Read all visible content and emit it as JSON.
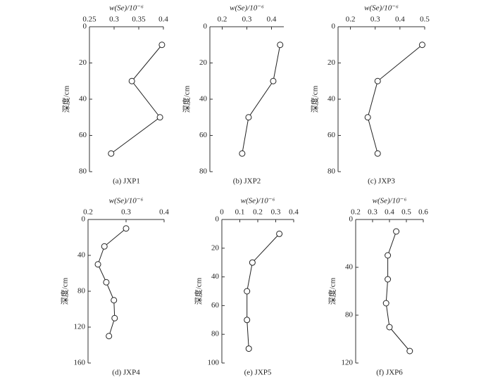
{
  "chart_data": [
    {
      "type": "line",
      "xlabel": "w(Se)/10⁻⁶",
      "ylabel": "深度/cm",
      "caption": "(a) JXP1",
      "color": "#222",
      "values": [
        0.397,
        0.336,
        0.393,
        0.294
      ],
      "y": [
        10,
        30,
        50,
        70
      ],
      "xlim": [
        0.25,
        0.4
      ],
      "xticks": [
        0.25,
        0.3,
        0.35,
        0.4
      ],
      "ylim": [
        0,
        80
      ],
      "yticks": [
        0,
        20,
        40,
        60,
        80
      ]
    },
    {
      "type": "line",
      "xlabel": "w(Se)/10⁻⁶",
      "ylabel": "深度/cm",
      "caption": "(b) JXP2",
      "color": "#222",
      "values": [
        0.435,
        0.407,
        0.307,
        0.281
      ],
      "y": [
        10,
        30,
        50,
        70
      ],
      "xlim": [
        0.15,
        0.45
      ],
      "xticks": [
        0.2,
        0.3,
        0.4
      ],
      "ylim": [
        0,
        80
      ],
      "yticks": [
        0,
        20,
        40,
        60,
        80
      ]
    },
    {
      "type": "line",
      "xlabel": "w(Se)/10⁻⁶",
      "ylabel": "深度/cm",
      "caption": "(c) JXP3",
      "color": "#222",
      "values": [
        0.49,
        0.31,
        0.27,
        0.31
      ],
      "y": [
        10,
        30,
        50,
        70
      ],
      "xlim": [
        0.15,
        0.5
      ],
      "xticks": [
        0.2,
        0.3,
        0.4,
        0.5
      ],
      "ylim": [
        0,
        80
      ],
      "yticks": [
        0,
        20,
        40,
        60,
        80
      ]
    },
    {
      "type": "line",
      "xlabel": "w(Se)/10⁻⁶",
      "ylabel": "深度/cm",
      "caption": "(d) JXP4",
      "color": "#222",
      "values": [
        0.3,
        0.243,
        0.226,
        0.248,
        0.268,
        0.27,
        0.255
      ],
      "y": [
        10,
        30,
        50,
        70,
        90,
        110,
        130
      ],
      "xlim": [
        0.2,
        0.4
      ],
      "xticks": [
        0.2,
        0.3,
        0.4
      ],
      "ylim": [
        0,
        160
      ],
      "yticks": [
        0,
        40,
        80,
        120,
        160
      ]
    },
    {
      "type": "line",
      "xlabel": "w(Se)/10⁻⁶",
      "ylabel": "深度/cm",
      "caption": "(e) JXP5",
      "color": "#222",
      "values": [
        0.32,
        0.17,
        0.14,
        0.14,
        0.15
      ],
      "y": [
        10,
        30,
        50,
        70,
        90
      ],
      "xlim": [
        0,
        0.4
      ],
      "xticks": [
        0,
        0.1,
        0.2,
        0.3,
        0.4
      ],
      "ylim": [
        0,
        100
      ],
      "yticks": [
        0,
        20,
        40,
        60,
        80,
        100
      ]
    },
    {
      "type": "line",
      "xlabel": "w(Se)/10⁻⁶",
      "ylabel": "深度/cm",
      "caption": "(f) JXP6",
      "color": "#222",
      "values": [
        0.44,
        0.39,
        0.39,
        0.38,
        0.4,
        0.52
      ],
      "y": [
        10,
        30,
        50,
        70,
        90,
        110
      ],
      "xlim": [
        0.2,
        0.6
      ],
      "xticks": [
        0.2,
        0.3,
        0.4,
        0.5,
        0.6
      ],
      "ylim": [
        0,
        120
      ],
      "yticks": [
        0,
        40,
        80,
        120
      ]
    }
  ]
}
